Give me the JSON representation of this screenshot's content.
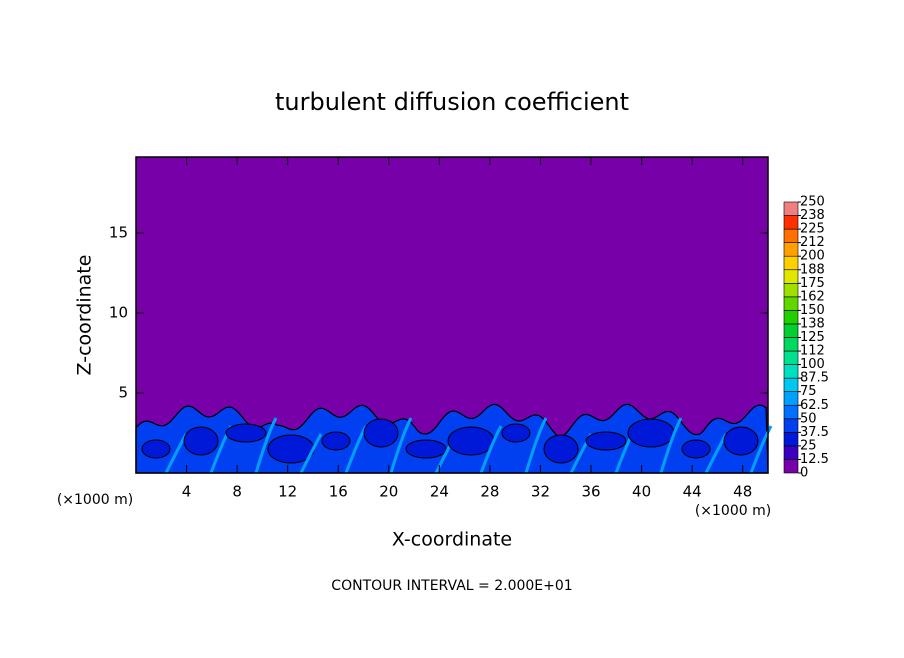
{
  "chart_data": {
    "type": "contour",
    "title": "turbulent diffusion coefficient",
    "xlabel": "X-coordinate",
    "ylabel": "Z-coordinate",
    "x_unit": "(×1000 m)",
    "y_unit": "(×1000 m)",
    "annotation": "CONTOUR INTERVAL = 2.000E+01",
    "xlim": [
      0,
      50
    ],
    "xticks": [
      4,
      8,
      12,
      16,
      20,
      24,
      28,
      32,
      36,
      40,
      44,
      48
    ],
    "ylim": [
      0,
      19.75
    ],
    "yticks": [
      5,
      10,
      15
    ],
    "clim": [
      0,
      250
    ],
    "colorbar_ticks": [
      0,
      12.5,
      25,
      37.5,
      50,
      62.5,
      75,
      87.5,
      100,
      {
        "value": 112.5,
        "label": "112"
      },
      125,
      {
        "value": 137.5,
        "label": "138"
      },
      150,
      {
        "value": 162.5,
        "label": "162"
      },
      175,
      {
        "value": 187.5,
        "label": "188"
      },
      200,
      {
        "value": 212.5,
        "label": "212"
      },
      225,
      {
        "value": 237.5,
        "label": "238"
      },
      250
    ],
    "colorbar_colors": [
      "#7800a8",
      "#3c00c0",
      "#0018d8",
      "#0040f0",
      "#0070ff",
      "#00a0ff",
      "#00c8f0",
      "#00e0c0",
      "#00e090",
      "#00d860",
      "#00d030",
      "#20d000",
      "#60d800",
      "#a0e000",
      "#e0e800",
      "#ffd000",
      "#ffa000",
      "#ff7000",
      "#ff3000",
      "#f08080"
    ]
  }
}
